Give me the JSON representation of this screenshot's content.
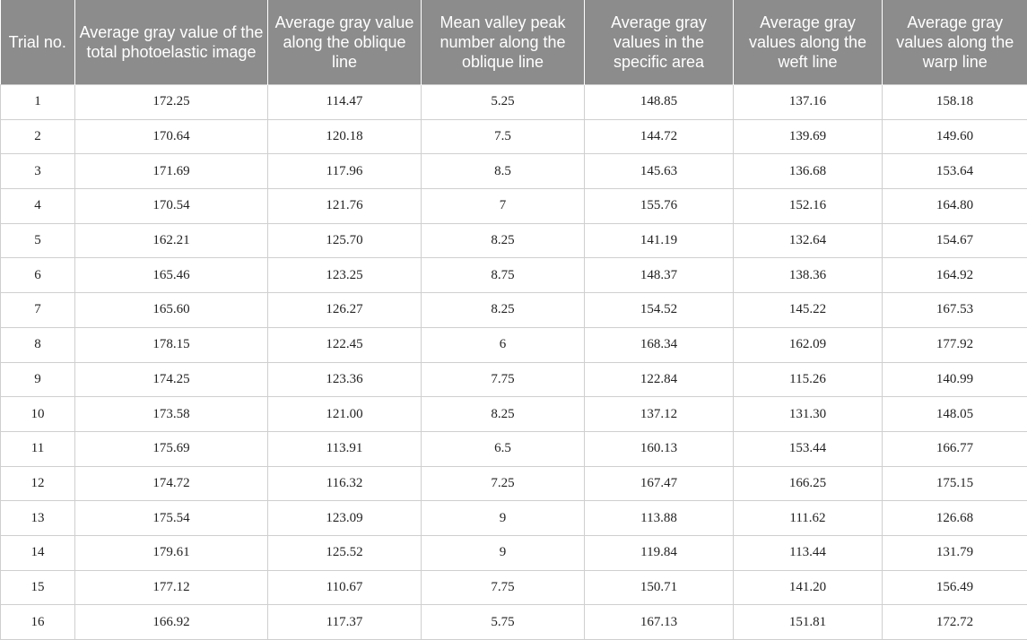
{
  "table": {
    "columns": [
      "Trial no.",
      "Average gray value of the total photoelastic image",
      "Average gray value along the oblique line",
      "Mean valley peak number along the oblique line",
      "Average gray values in the specific area",
      "Average gray values along the weft line",
      "Average gray values along the warp line"
    ],
    "rows": [
      [
        "1",
        "172.25",
        "114.47",
        "5.25",
        "148.85",
        "137.16",
        "158.18"
      ],
      [
        "2",
        "170.64",
        "120.18",
        "7.5",
        "144.72",
        "139.69",
        "149.60"
      ],
      [
        "3",
        "171.69",
        "117.96",
        "8.5",
        "145.63",
        "136.68",
        "153.64"
      ],
      [
        "4",
        "170.54",
        "121.76",
        "7",
        "155.76",
        "152.16",
        "164.80"
      ],
      [
        "5",
        "162.21",
        "125.70",
        "8.25",
        "141.19",
        "132.64",
        "154.67"
      ],
      [
        "6",
        "165.46",
        "123.25",
        "8.75",
        "148.37",
        "138.36",
        "164.92"
      ],
      [
        "7",
        "165.60",
        "126.27",
        "8.25",
        "154.52",
        "145.22",
        "167.53"
      ],
      [
        "8",
        "178.15",
        "122.45",
        "6",
        "168.34",
        "162.09",
        "177.92"
      ],
      [
        "9",
        "174.25",
        "123.36",
        "7.75",
        "122.84",
        "115.26",
        "140.99"
      ],
      [
        "10",
        "173.58",
        "121.00",
        "8.25",
        "137.12",
        "131.30",
        "148.05"
      ],
      [
        "11",
        "175.69",
        "113.91",
        "6.5",
        "160.13",
        "153.44",
        "166.77"
      ],
      [
        "12",
        "174.72",
        "116.32",
        "7.25",
        "167.47",
        "166.25",
        "175.15"
      ],
      [
        "13",
        "175.54",
        "123.09",
        "9",
        "113.88",
        "111.62",
        "126.68"
      ],
      [
        "14",
        "179.61",
        "125.52",
        "9",
        "119.84",
        "113.44",
        "131.79"
      ],
      [
        "15",
        "177.12",
        "110.67",
        "7.75",
        "150.71",
        "141.20",
        "156.49"
      ],
      [
        "16",
        "166.92",
        "117.37",
        "5.75",
        "167.13",
        "151.81",
        "172.72"
      ]
    ]
  }
}
